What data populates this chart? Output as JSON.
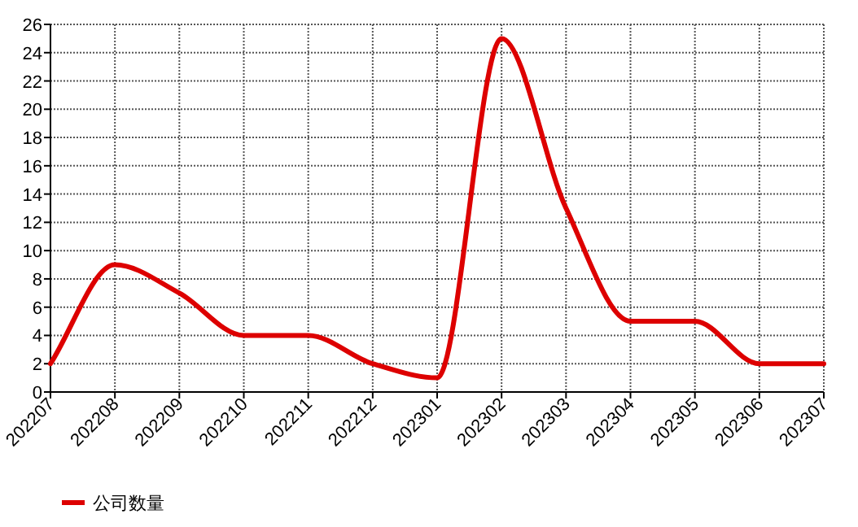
{
  "chart_data": {
    "type": "line",
    "categories": [
      "202207",
      "202208",
      "202209",
      "202210",
      "202211",
      "202212",
      "202301",
      "202302",
      "202303",
      "202304",
      "202305",
      "202306",
      "202307"
    ],
    "series": [
      {
        "name": "公司数量",
        "color": "#dd0000",
        "values": [
          2,
          9,
          7,
          4,
          4,
          2,
          1,
          25,
          13,
          5,
          5,
          2,
          2
        ]
      }
    ],
    "ylim": [
      0,
      26
    ],
    "yticks": [
      0,
      2,
      4,
      6,
      8,
      10,
      12,
      14,
      16,
      18,
      20,
      22,
      24,
      26
    ],
    "grid": true,
    "legend": "bottom left",
    "marker": "none",
    "line_style": "solid"
  }
}
